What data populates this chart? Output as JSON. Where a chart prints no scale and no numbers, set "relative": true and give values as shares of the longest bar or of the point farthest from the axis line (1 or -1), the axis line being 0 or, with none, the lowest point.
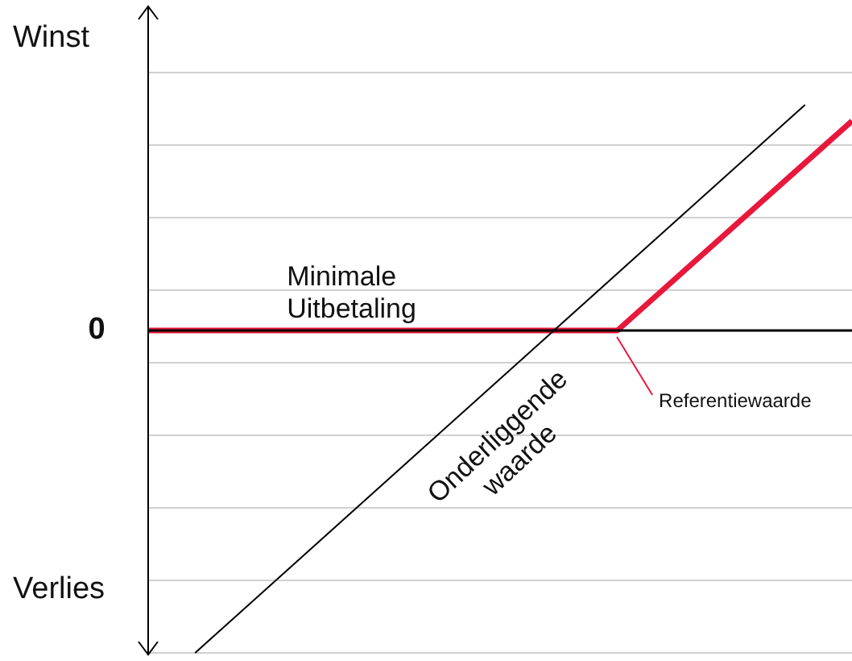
{
  "chart_data": {
    "type": "line",
    "relative": true,
    "grid": "y",
    "legend": false,
    "marker": "none",
    "line_style": "solid",
    "categories": [
      null,
      null,
      null,
      null,
      null,
      null,
      null,
      null,
      null,
      null,
      null,
      null,
      null,
      null,
      null,
      null
    ],
    "series": [
      {
        "color": "#000000",
        "values": [
          null,
          -1,
          null,
          null,
          null,
          null,
          null,
          null,
          null,
          null,
          null,
          null,
          null,
          null,
          0.7,
          null
        ]
      },
      {
        "color": "#e8183c",
        "values": [
          0,
          null,
          null,
          null,
          null,
          null,
          null,
          null,
          null,
          null,
          0,
          null,
          null,
          null,
          null,
          0.65
        ]
      }
    ],
    "annotations": [
      "Winst",
      "Verlies",
      "0",
      "Minimale Uitbetaling",
      "Onderliggende waarde",
      "Referentiewaarde"
    ]
  }
}
